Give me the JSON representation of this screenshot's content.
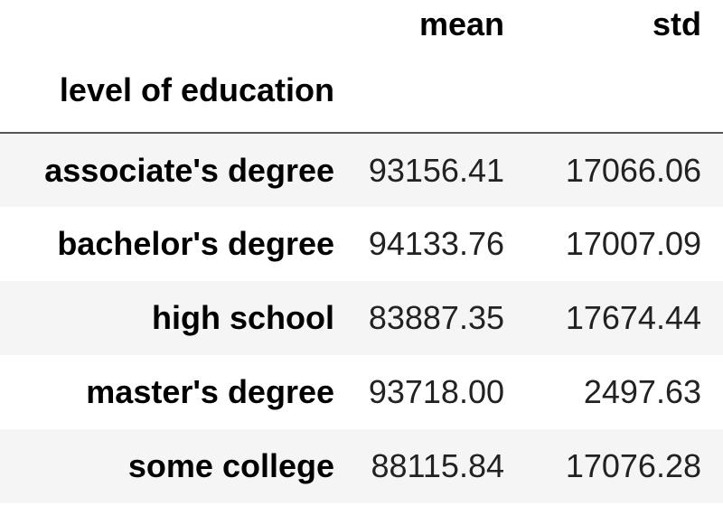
{
  "table": {
    "columns": [
      "mean",
      "std"
    ],
    "index_name": "level of education",
    "rows": [
      {
        "label": "associate's degree",
        "mean": "93156.41",
        "std": "17066.06"
      },
      {
        "label": "bachelor's degree",
        "mean": "94133.76",
        "std": "17007.09"
      },
      {
        "label": "high school",
        "mean": "83887.35",
        "std": "17674.44"
      },
      {
        "label": "master's degree",
        "mean": "93718.00",
        "std": "2497.63"
      },
      {
        "label": "some college",
        "mean": "88115.84",
        "std": "17076.28"
      }
    ]
  },
  "colors": {
    "row_stripe": "#f5f5f5",
    "header_rule": "#555555",
    "text": "#000000"
  }
}
